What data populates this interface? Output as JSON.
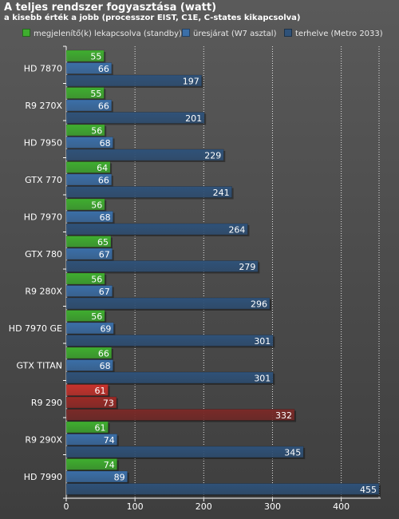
{
  "chart_data": {
    "type": "bar",
    "orientation": "horizontal",
    "title": "A teljes rendszer fogyasztása (watt)",
    "subtitle": "a kisebb érték a jobb (processzor EIST, C1E, C-states kikapcsolva)",
    "xlabel": "",
    "ylabel": "",
    "xlim": [
      0,
      455
    ],
    "xticks": [
      0,
      100,
      200,
      300,
      400
    ],
    "grid": true,
    "legend_position": "top",
    "categories": [
      "HD 7870",
      "R9 270X",
      "HD 7950",
      "GTX 770",
      "HD 7970",
      "GTX 780",
      "R9 280X",
      "HD 7970 GE",
      "GTX TITAN",
      "R9 290",
      "R9 290X",
      "HD 7990"
    ],
    "highlight_category": "R9 290",
    "series": [
      {
        "name": "megjelenítő(k) lekapcsolva (standby)",
        "color": "#3fae2f",
        "values": [
          55,
          55,
          56,
          64,
          56,
          65,
          56,
          56,
          66,
          61,
          61,
          74
        ]
      },
      {
        "name": "üresjárat (W7 asztal)",
        "color": "#3b6fa8",
        "values": [
          66,
          66,
          68,
          66,
          68,
          67,
          67,
          69,
          68,
          73,
          74,
          89
        ]
      },
      {
        "name": "terhelve (Metro 2033)",
        "color": "#2f5279",
        "values": [
          197,
          201,
          229,
          241,
          264,
          279,
          296,
          301,
          301,
          332,
          345,
          455
        ]
      }
    ],
    "highlight_colors": [
      "#c8322c",
      "#9a2a26",
      "#7a2a28"
    ]
  }
}
